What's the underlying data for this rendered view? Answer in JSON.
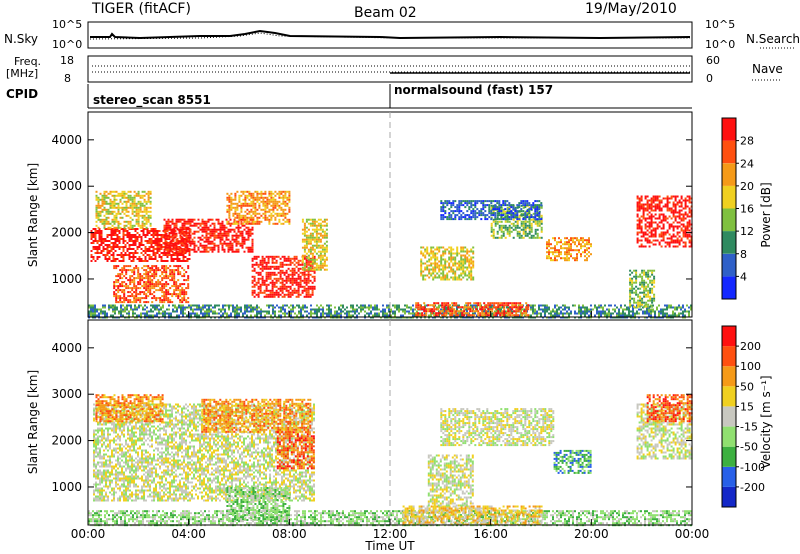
{
  "header": {
    "radar": "TIGER (fitACF)",
    "beam": "Beam 02",
    "date": "19/May/2010"
  },
  "top_panels": {
    "nsky_label": "N.Sky",
    "nsky_ticks": [
      "10^5",
      "10^0"
    ],
    "nsearch_label": "N.Search",
    "nsearch_ticks": [
      "10^5",
      "10^0"
    ],
    "freq_label": "Freq.",
    "freq_unit": "[MHz]",
    "freq_ticks": [
      "18",
      "8"
    ],
    "nave_label": "Nave",
    "nave_ticks": [
      "60",
      "0"
    ],
    "cpid_label": "CPID",
    "cpid_entries": [
      {
        "name": "stereo_scan 8551",
        "start_hour": 0
      },
      {
        "name": "normalsound (fast) 157",
        "start_hour": 12
      }
    ]
  },
  "chart_data": [
    {
      "type": "heatmap",
      "name": "Power",
      "ylabel": "Slant Range [km]",
      "ylim": [
        180,
        4600
      ],
      "yticks": [
        1000,
        2000,
        3000,
        4000
      ],
      "xlim": [
        0,
        24
      ],
      "colorbar": {
        "label": "Power [dB]",
        "ticks": [
          "4",
          "8",
          "12",
          "16",
          "20",
          "24",
          "28"
        ],
        "colors": [
          "#1428ff",
          "#2f60c8",
          "#2f8a60",
          "#7fc040",
          "#f0d020",
          "#f59a18",
          "#ff5010",
          "#ff1010"
        ]
      },
      "regions": [
        {
          "t0": 0.1,
          "t1": 4.0,
          "r0": 1400,
          "r1": 2100,
          "level": 7
        },
        {
          "t0": 0.3,
          "t1": 2.5,
          "r0": 2100,
          "r1": 2900,
          "level": 4
        },
        {
          "t0": 3.0,
          "t1": 6.5,
          "r0": 1600,
          "r1": 2300,
          "level": 7
        },
        {
          "t0": 5.5,
          "t1": 8.0,
          "r0": 2200,
          "r1": 2900,
          "level": 5
        },
        {
          "t0": 6.5,
          "t1": 9.0,
          "r0": 600,
          "r1": 1500,
          "level": 7
        },
        {
          "t0": 1.0,
          "t1": 4.0,
          "r0": 500,
          "r1": 1300,
          "level": 6
        },
        {
          "t0": 8.5,
          "t1": 9.5,
          "r0": 1200,
          "r1": 2300,
          "level": 4
        },
        {
          "t0": 0.0,
          "t1": 24.0,
          "r0": 180,
          "r1": 450,
          "level": 2
        },
        {
          "t0": 13.0,
          "t1": 17.5,
          "r0": 220,
          "r1": 500,
          "level": 6
        },
        {
          "t0": 13.2,
          "t1": 15.3,
          "r0": 1000,
          "r1": 1700,
          "level": 4
        },
        {
          "t0": 16.0,
          "t1": 18.0,
          "r0": 1900,
          "r1": 2600,
          "level": 3
        },
        {
          "t0": 18.2,
          "t1": 20.0,
          "r0": 1400,
          "r1": 1900,
          "level": 5
        },
        {
          "t0": 14.0,
          "t1": 18.0,
          "r0": 2300,
          "r1": 2700,
          "level": 1
        },
        {
          "t0": 21.8,
          "t1": 24.0,
          "r0": 1700,
          "r1": 2800,
          "level": 7
        },
        {
          "t0": 21.5,
          "t1": 22.5,
          "r0": 400,
          "r1": 1200,
          "level": 3
        }
      ]
    },
    {
      "type": "heatmap",
      "name": "Velocity",
      "ylabel": "Slant Range [km]",
      "ylim": [
        180,
        4600
      ],
      "yticks": [
        1000,
        2000,
        3000,
        4000
      ],
      "xlim": [
        0,
        24
      ],
      "xlabel": "Time UT",
      "xticks": [
        "00:00",
        "04:00",
        "08:00",
        "12:00",
        "16:00",
        "20:00",
        "00:00"
      ],
      "colorbar": {
        "label": "Velocity [m s⁻¹]",
        "ticks": [
          "200",
          "100",
          "50",
          "15",
          "-15",
          "-50",
          "-100",
          "-200"
        ],
        "colors": [
          "#1428c8",
          "#2860e8",
          "#3cb040",
          "#90e070",
          "#c8c8c0",
          "#f0d020",
          "#f59a18",
          "#ff5010",
          "#ff1010"
        ]
      },
      "regions": [
        {
          "t0": 0.2,
          "t1": 9.0,
          "r0": 700,
          "r1": 2800,
          "level": 4
        },
        {
          "t0": 0.3,
          "t1": 3.0,
          "r0": 2400,
          "r1": 3000,
          "level": 6
        },
        {
          "t0": 4.5,
          "t1": 8.8,
          "r0": 2200,
          "r1": 2900,
          "level": 6
        },
        {
          "t0": 7.5,
          "t1": 9.0,
          "r0": 1400,
          "r1": 2200,
          "level": 7
        },
        {
          "t0": 5.5,
          "t1": 8.0,
          "r0": 300,
          "r1": 1000,
          "level": 3
        },
        {
          "t0": 0.0,
          "t1": 24.0,
          "r0": 180,
          "r1": 500,
          "level": 3
        },
        {
          "t0": 12.5,
          "t1": 18.0,
          "r0": 200,
          "r1": 600,
          "level": 5
        },
        {
          "t0": 13.5,
          "t1": 15.3,
          "r0": 600,
          "r1": 1700,
          "level": 4
        },
        {
          "t0": 14.0,
          "t1": 18.5,
          "r0": 1900,
          "r1": 2700,
          "level": 4
        },
        {
          "t0": 18.5,
          "t1": 20.0,
          "r0": 1300,
          "r1": 1800,
          "level": 2
        },
        {
          "t0": 21.8,
          "t1": 24.0,
          "r0": 1600,
          "r1": 2800,
          "level": 4
        },
        {
          "t0": 22.2,
          "t1": 24.0,
          "r0": 2400,
          "r1": 3000,
          "level": 7
        }
      ]
    }
  ]
}
